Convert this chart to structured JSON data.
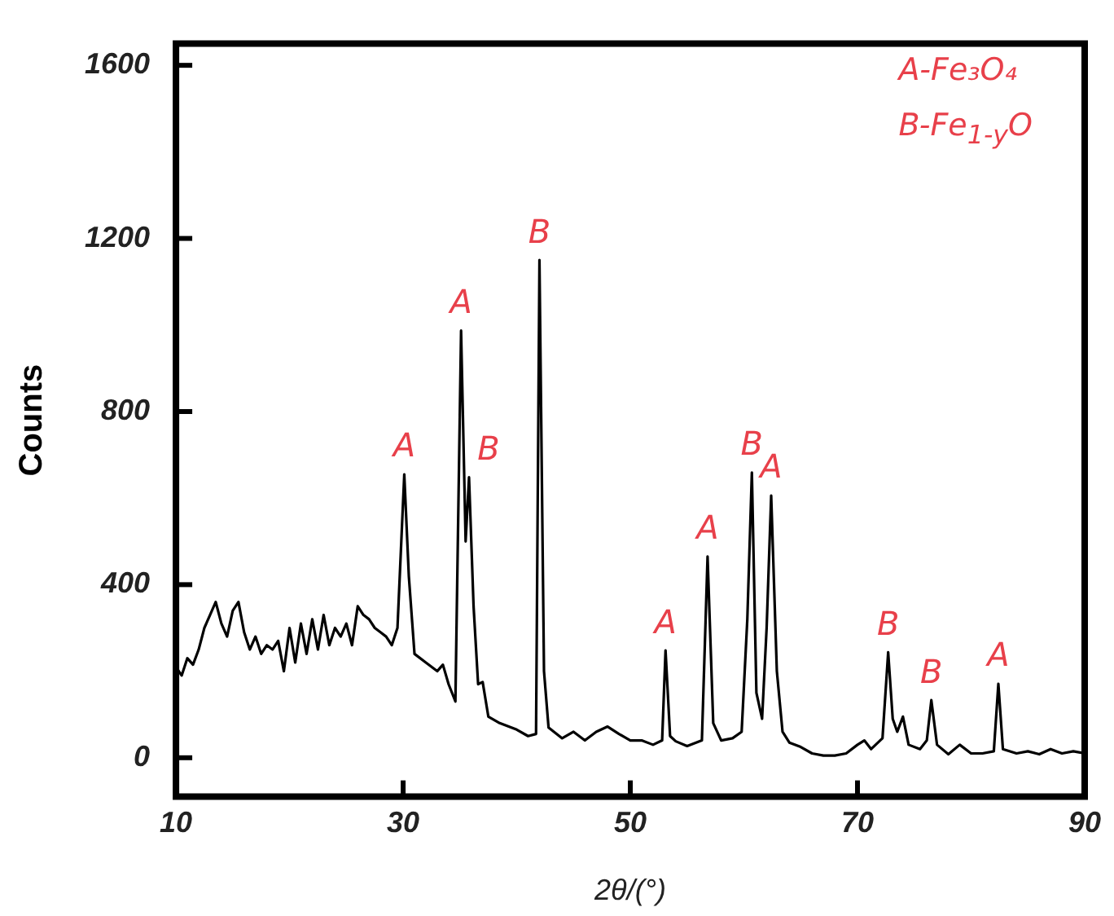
{
  "chart_data": {
    "type": "line",
    "xlabel": "2θ/(°)",
    "ylabel": "Counts",
    "xlim": [
      10,
      90
    ],
    "xticks": [
      10,
      30,
      50,
      70,
      90
    ],
    "ylim": [
      -90,
      1650
    ],
    "yticks": [
      0,
      400,
      800,
      1200,
      1600
    ],
    "grid": false,
    "legend": false,
    "marker": "none",
    "line_style": "solid",
    "series": [
      {
        "color": "#000000",
        "x": [
          10,
          10.5,
          11,
          11.5,
          12,
          12.5,
          13,
          13.5,
          14,
          14.5,
          15,
          15.5,
          16,
          16.5,
          17,
          17.5,
          18,
          18.5,
          19,
          19.5,
          20,
          20.5,
          21,
          21.5,
          22,
          22.5,
          23,
          23.5,
          24,
          24.5,
          25,
          25.5,
          26,
          26.5,
          27,
          27.5,
          28,
          28.5,
          29,
          29.5,
          30.1,
          30.5,
          31,
          32,
          33,
          33.5,
          34,
          34.6,
          35.1,
          35.5,
          35.8,
          36.2,
          36.6,
          37,
          37.5,
          38.5,
          40,
          41,
          41.7,
          42.0,
          42.4,
          42.8,
          44,
          45,
          46,
          47,
          48,
          49,
          50,
          51,
          52,
          52.8,
          53.1,
          53.5,
          54,
          55,
          56.3,
          56.8,
          57.3,
          58,
          59,
          59.8,
          60.3,
          60.7,
          61.1,
          61.6,
          62.0,
          62.4,
          62.9,
          63.4,
          64,
          65,
          66,
          67,
          68,
          69,
          70,
          70.6,
          71.2,
          72.2,
          72.7,
          73.1,
          73.5,
          74,
          74.5,
          75.5,
          76.1,
          76.5,
          77,
          78,
          79,
          80,
          81,
          82,
          82.4,
          82.8,
          84,
          85,
          86,
          87,
          88,
          89,
          90
        ],
        "values": [
          210,
          190,
          230,
          215,
          250,
          300,
          330,
          360,
          310,
          280,
          340,
          360,
          290,
          250,
          280,
          240,
          260,
          250,
          270,
          200,
          300,
          220,
          310,
          240,
          320,
          250,
          330,
          260,
          300,
          280,
          310,
          260,
          350,
          330,
          320,
          300,
          290,
          280,
          260,
          300,
          655,
          420,
          240,
          220,
          200,
          215,
          170,
          130,
          987,
          500,
          648,
          350,
          170,
          175,
          95,
          80,
          65,
          50,
          55,
          1150,
          200,
          70,
          45,
          60,
          40,
          60,
          72,
          55,
          40,
          40,
          30,
          40,
          248,
          50,
          38,
          27,
          40,
          465,
          80,
          40,
          45,
          60,
          320,
          659,
          150,
          90,
          300,
          606,
          200,
          60,
          35,
          25,
          10,
          5,
          5,
          10,
          30,
          40,
          20,
          45,
          244,
          90,
          60,
          95,
          30,
          20,
          40,
          133,
          30,
          8,
          30,
          10,
          10,
          15,
          171,
          20,
          10,
          15,
          8,
          20,
          10,
          15,
          10
        ]
      }
    ],
    "annotations": [
      {
        "text": "A",
        "x": 30.1,
        "y": 655
      },
      {
        "text": "A",
        "x": 35.1,
        "y": 987
      },
      {
        "text": "B",
        "x": 35.8,
        "y": 648
      },
      {
        "text": "B",
        "x": 42.0,
        "y": 1150
      },
      {
        "text": "A",
        "x": 53.1,
        "y": 248
      },
      {
        "text": "A",
        "x": 56.8,
        "y": 465
      },
      {
        "text": "B",
        "x": 60.7,
        "y": 659
      },
      {
        "text": "A",
        "x": 62.4,
        "y": 606
      },
      {
        "text": "B",
        "x": 72.7,
        "y": 244
      },
      {
        "text": "B",
        "x": 76.5,
        "y": 133
      },
      {
        "text": "A",
        "x": 82.4,
        "y": 171
      },
      "A-Fe₃O₄",
      "B-Fe$_{1-y}$O"
    ]
  }
}
